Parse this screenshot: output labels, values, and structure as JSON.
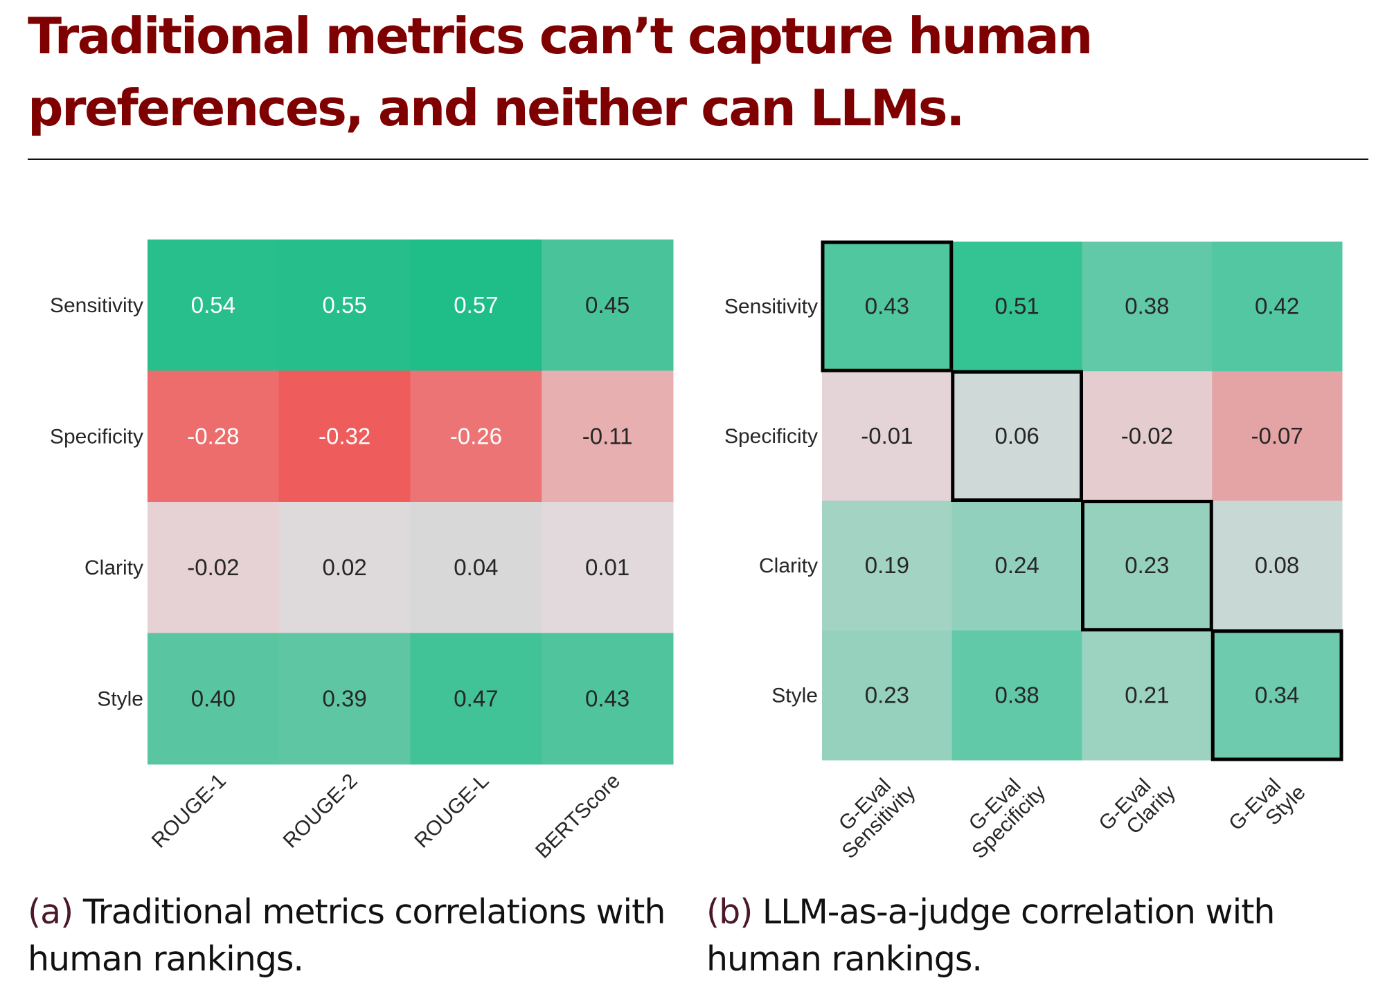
{
  "title": {
    "line1": "Traditional metrics can’t capture human",
    "line2": "preferences, and neither can LLMs.",
    "color": "#7f0000"
  },
  "captions": [
    {
      "tag": "(a)",
      "text": " Traditional metrics correlations with human rankings."
    },
    {
      "tag": "(b)",
      "text": " LLM-as-a-judge correlation with human rankings."
    }
  ],
  "chart_data": [
    {
      "type": "heatmap",
      "id": "a",
      "title": "Traditional metrics correlations with human rankings",
      "rows": [
        "Sensitivity",
        "Specificity",
        "Clarity",
        "Style"
      ],
      "columns": [
        [
          "ROUGE-1"
        ],
        [
          "ROUGE-2"
        ],
        [
          "ROUGE-L"
        ],
        [
          "BERTScore"
        ]
      ],
      "values": [
        [
          0.54,
          0.55,
          0.57,
          0.45
        ],
        [
          -0.28,
          -0.32,
          -0.26,
          -0.11
        ],
        [
          -0.02,
          0.02,
          0.04,
          0.01
        ],
        [
          0.4,
          0.39,
          0.47,
          0.43
        ]
      ],
      "value_labels": [
        [
          "0.54",
          "0.55",
          "0.57",
          "0.45"
        ],
        [
          "-0.28",
          "-0.32",
          "-0.26",
          "-0.11"
        ],
        [
          "-0.02",
          "0.02",
          "0.04",
          "0.01"
        ],
        [
          "0.40",
          "0.39",
          "0.47",
          "0.43"
        ]
      ],
      "colorscale": {
        "negative": "#ee5c5c",
        "neutral": "#e5dadd",
        "positive": "#1fbd88",
        "vmin": -0.32,
        "vmax": 0.57
      },
      "highlighted_cells": []
    },
    {
      "type": "heatmap",
      "id": "b",
      "title": "LLM-as-a-judge correlation with human rankings",
      "rows": [
        "Sensitivity",
        "Specificity",
        "Clarity",
        "Style"
      ],
      "columns": [
        [
          "G-Eval",
          "Sensitivity"
        ],
        [
          "G-Eval",
          "Specificity"
        ],
        [
          "G-Eval",
          "Clarity"
        ],
        [
          "G-Eval",
          "Style"
        ]
      ],
      "values": [
        [
          0.43,
          0.51,
          0.38,
          0.42
        ],
        [
          -0.01,
          0.06,
          -0.02,
          -0.07
        ],
        [
          0.19,
          0.24,
          0.23,
          0.08
        ],
        [
          0.23,
          0.38,
          0.21,
          0.34
        ]
      ],
      "value_labels": [
        [
          "0.43",
          "0.51",
          "0.38",
          "0.42"
        ],
        [
          "-0.01",
          "0.06",
          "-0.02",
          "-0.07"
        ],
        [
          "0.19",
          "0.24",
          "0.23",
          "0.08"
        ],
        [
          "0.23",
          "0.38",
          "0.21",
          "0.34"
        ]
      ],
      "colorscale": {
        "negative": "#e4a4a6",
        "neutral": "#e4dce0",
        "positive": "#34c393",
        "vmin": -0.07,
        "vmax": 0.51
      },
      "highlighted_cells": [
        [
          0,
          0
        ],
        [
          1,
          1
        ],
        [
          2,
          2
        ],
        [
          3,
          3
        ]
      ]
    }
  ]
}
